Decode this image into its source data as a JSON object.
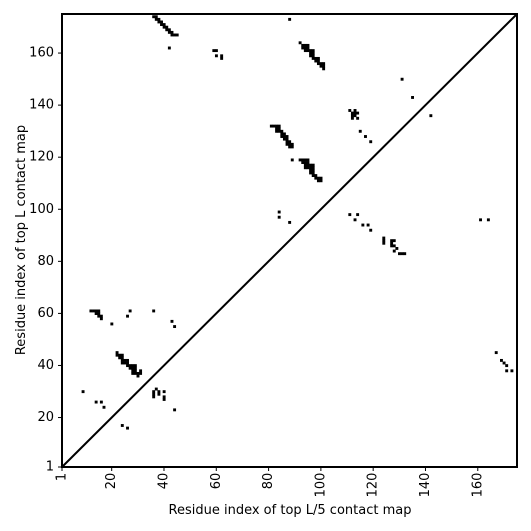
{
  "chart_data": {
    "type": "heatmap",
    "xlabel": "Residue index of top L/5 contact map",
    "ylabel": "Residue index of top L contact map",
    "xlim": [
      1,
      175
    ],
    "ylim": [
      1,
      175
    ],
    "x_ticks": [
      1,
      20,
      40,
      60,
      80,
      100,
      120,
      140,
      160
    ],
    "y_ticks": [
      1,
      20,
      40,
      60,
      80,
      100,
      120,
      140,
      160
    ],
    "x_tick_rotation": -90,
    "diagonal": true,
    "grid": false,
    "cell_color": "#000000",
    "axes_color": "#000000",
    "background": "#ffffff",
    "contacts": [
      [
        36,
        174
      ],
      [
        37,
        174
      ],
      [
        37,
        173
      ],
      [
        38,
        173
      ],
      [
        38,
        172
      ],
      [
        39,
        172
      ],
      [
        39,
        171
      ],
      [
        40,
        171
      ],
      [
        40,
        170
      ],
      [
        41,
        170
      ],
      [
        41,
        169
      ],
      [
        42,
        169
      ],
      [
        42,
        168
      ],
      [
        43,
        168
      ],
      [
        43,
        167
      ],
      [
        44,
        167
      ],
      [
        45,
        167
      ],
      [
        42,
        162
      ],
      [
        59,
        161
      ],
      [
        60,
        161
      ],
      [
        60,
        159
      ],
      [
        62,
        159
      ],
      [
        62,
        158
      ],
      [
        88,
        173
      ],
      [
        92,
        164
      ],
      [
        93,
        163
      ],
      [
        94,
        163
      ],
      [
        95,
        163
      ],
      [
        93,
        162
      ],
      [
        94,
        162
      ],
      [
        95,
        162
      ],
      [
        94,
        161
      ],
      [
        95,
        161
      ],
      [
        96,
        161
      ],
      [
        97,
        161
      ],
      [
        96,
        160
      ],
      [
        97,
        160
      ],
      [
        96,
        159
      ],
      [
        97,
        159
      ],
      [
        97,
        158
      ],
      [
        98,
        158
      ],
      [
        99,
        158
      ],
      [
        98,
        157
      ],
      [
        99,
        157
      ],
      [
        99,
        156
      ],
      [
        100,
        156
      ],
      [
        101,
        156
      ],
      [
        100,
        155
      ],
      [
        101,
        155
      ],
      [
        101,
        154
      ],
      [
        81,
        132
      ],
      [
        82,
        132
      ],
      [
        83,
        132
      ],
      [
        84,
        132
      ],
      [
        83,
        131
      ],
      [
        84,
        131
      ],
      [
        83,
        130
      ],
      [
        84,
        130
      ],
      [
        85,
        130
      ],
      [
        85,
        129
      ],
      [
        86,
        129
      ],
      [
        85,
        128
      ],
      [
        86,
        128
      ],
      [
        87,
        128
      ],
      [
        86,
        127
      ],
      [
        87,
        127
      ],
      [
        87,
        126
      ],
      [
        88,
        126
      ],
      [
        87,
        125
      ],
      [
        88,
        125
      ],
      [
        89,
        125
      ],
      [
        88,
        124
      ],
      [
        89,
        124
      ],
      [
        89,
        119
      ],
      [
        92,
        119
      ],
      [
        93,
        119
      ],
      [
        94,
        119
      ],
      [
        95,
        119
      ],
      [
        93,
        118
      ],
      [
        94,
        118
      ],
      [
        95,
        118
      ],
      [
        94,
        117
      ],
      [
        95,
        117
      ],
      [
        96,
        117
      ],
      [
        97,
        117
      ],
      [
        94,
        116
      ],
      [
        95,
        116
      ],
      [
        96,
        116
      ],
      [
        97,
        116
      ],
      [
        96,
        115
      ],
      [
        97,
        115
      ],
      [
        96,
        114
      ],
      [
        97,
        114
      ],
      [
        97,
        113
      ],
      [
        98,
        113
      ],
      [
        98,
        112
      ],
      [
        99,
        112
      ],
      [
        100,
        112
      ],
      [
        99,
        111
      ],
      [
        100,
        111
      ],
      [
        84,
        99
      ],
      [
        84,
        97
      ],
      [
        88,
        95
      ],
      [
        111,
        138
      ],
      [
        113,
        138
      ],
      [
        112,
        137
      ],
      [
        113,
        137
      ],
      [
        114,
        137
      ],
      [
        112,
        136
      ],
      [
        113,
        136
      ],
      [
        112,
        135
      ],
      [
        114,
        135
      ],
      [
        115,
        130
      ],
      [
        117,
        128
      ],
      [
        119,
        126
      ],
      [
        131,
        150
      ],
      [
        135,
        143
      ],
      [
        142,
        136
      ],
      [
        111,
        98
      ],
      [
        114,
        98
      ],
      [
        113,
        96
      ],
      [
        116,
        94
      ],
      [
        118,
        94
      ],
      [
        119,
        92
      ],
      [
        124,
        89
      ],
      [
        124,
        88
      ],
      [
        124,
        87
      ],
      [
        127,
        88
      ],
      [
        128,
        88
      ],
      [
        127,
        87
      ],
      [
        127,
        86
      ],
      [
        128,
        86
      ],
      [
        129,
        85
      ],
      [
        128,
        84
      ],
      [
        130,
        83
      ],
      [
        131,
        83
      ],
      [
        132,
        83
      ],
      [
        161,
        96
      ],
      [
        164,
        96
      ],
      [
        167,
        45
      ],
      [
        169,
        42
      ],
      [
        170,
        41
      ],
      [
        171,
        40
      ],
      [
        171,
        38
      ],
      [
        173,
        38
      ],
      [
        12,
        61
      ],
      [
        13,
        61
      ],
      [
        14,
        61
      ],
      [
        15,
        61
      ],
      [
        14,
        60
      ],
      [
        15,
        60
      ],
      [
        15,
        59
      ],
      [
        16,
        59
      ],
      [
        16,
        58
      ],
      [
        27,
        61
      ],
      [
        26,
        59
      ],
      [
        20,
        56
      ],
      [
        36,
        61
      ],
      [
        43,
        57
      ],
      [
        44,
        55
      ],
      [
        22,
        45
      ],
      [
        22,
        44
      ],
      [
        23,
        44
      ],
      [
        24,
        44
      ],
      [
        23,
        43
      ],
      [
        24,
        43
      ],
      [
        24,
        42
      ],
      [
        25,
        42
      ],
      [
        26,
        42
      ],
      [
        24,
        41
      ],
      [
        25,
        41
      ],
      [
        26,
        41
      ],
      [
        26,
        40
      ],
      [
        27,
        40
      ],
      [
        28,
        40
      ],
      [
        29,
        40
      ],
      [
        27,
        39
      ],
      [
        28,
        39
      ],
      [
        29,
        39
      ],
      [
        28,
        38
      ],
      [
        29,
        38
      ],
      [
        31,
        38
      ],
      [
        28,
        37
      ],
      [
        29,
        37
      ],
      [
        30,
        37
      ],
      [
        31,
        37
      ],
      [
        30,
        36
      ],
      [
        9,
        30
      ],
      [
        37,
        31
      ],
      [
        36,
        30
      ],
      [
        38,
        30
      ],
      [
        40,
        30
      ],
      [
        36,
        29
      ],
      [
        38,
        29
      ],
      [
        36,
        28
      ],
      [
        40,
        28
      ],
      [
        40,
        27
      ],
      [
        14,
        26
      ],
      [
        16,
        26
      ],
      [
        17,
        24
      ],
      [
        44,
        23
      ],
      [
        24,
        17
      ],
      [
        26,
        16
      ]
    ]
  }
}
